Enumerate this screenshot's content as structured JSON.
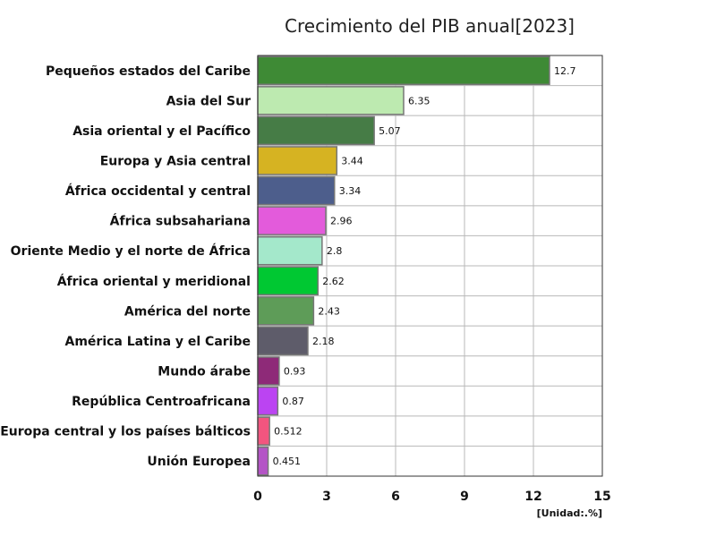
{
  "chart_data": {
    "type": "bar",
    "orientation": "horizontal",
    "title": "Crecimiento del PIB anual[2023]",
    "unit_label": "[Unidad:.%]",
    "xlim": [
      0,
      15
    ],
    "xticks": [
      0,
      3,
      6,
      9,
      12,
      15
    ],
    "grid": true,
    "categories": [
      "Pequeños estados del Caribe",
      "Asia del Sur",
      "Asia oriental y el Pacífico",
      "Europa y Asia central",
      "África occidental y central",
      "África subsahariana",
      "Oriente Medio y el norte de África",
      "África oriental y meridional",
      "América del norte",
      "América Latina y el Caribe",
      "Mundo árabe",
      "República Centroafricana",
      "Europa central y los países bálticos",
      "Unión Europea"
    ],
    "values": [
      12.7,
      6.35,
      5.07,
      3.44,
      3.34,
      2.96,
      2.8,
      2.62,
      2.43,
      2.18,
      0.93,
      0.87,
      0.512,
      0.451
    ],
    "value_labels": [
      "12.7",
      "6.35",
      "5.07",
      "3.44",
      "3.34",
      "2.96",
      "2.8",
      "2.62",
      "2.43",
      "2.18",
      "0.93",
      "0.87",
      "0.512",
      "0.451"
    ],
    "colors": [
      "#3e8a35",
      "#bdeab0",
      "#467c46",
      "#d6b322",
      "#4d5e8c",
      "#e35bdb",
      "#a4e8cb",
      "#00c832",
      "#5e9c58",
      "#5e5c6a",
      "#8e2a78",
      "#bb44f2",
      "#f2557f",
      "#b454c6"
    ]
  }
}
